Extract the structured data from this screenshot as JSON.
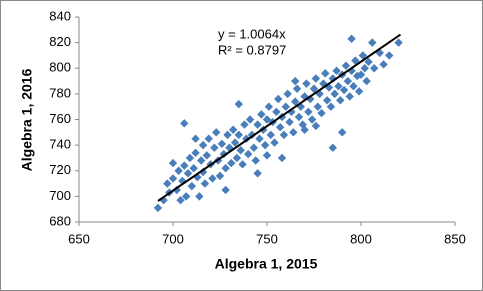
{
  "chart_data": {
    "type": "scatter",
    "x_label": "Algebra 1, 2015",
    "y_label": "Algebra 1, 2016",
    "annotations": [
      "y = 1.0064x",
      "R² = 0.8797"
    ],
    "color": "#4a7ebb",
    "grid": false,
    "legend": false,
    "xlim": [
      650,
      850
    ],
    "xticks": [
      650,
      700,
      750,
      800,
      850
    ],
    "ylim": [
      680,
      840
    ],
    "yticks": [
      680,
      700,
      720,
      740,
      760,
      780,
      800,
      820,
      840
    ],
    "trendline": {
      "color": "#000000",
      "x": [
        692,
        821
      ],
      "y": [
        696.4,
        826.3
      ]
    },
    "x": [
      692,
      695,
      697,
      698,
      700,
      700,
      702,
      703,
      704,
      705,
      706,
      706,
      707,
      708,
      709,
      710,
      711,
      712,
      713,
      714,
      715,
      716,
      716,
      717,
      718,
      719,
      720,
      721,
      722,
      723,
      724,
      725,
      726,
      727,
      728,
      729,
      730,
      731,
      732,
      733,
      734,
      735,
      735,
      736,
      737,
      738,
      739,
      740,
      741,
      742,
      743,
      744,
      745,
      746,
      747,
      748,
      749,
      750,
      750,
      751,
      752,
      753,
      754,
      755,
      756,
      757,
      758,
      759,
      760,
      761,
      762,
      763,
      764,
      765,
      766,
      767,
      768,
      769,
      770,
      771,
      772,
      773,
      774,
      775,
      776,
      777,
      778,
      779,
      780,
      781,
      782,
      783,
      784,
      785,
      785,
      786,
      787,
      788,
      789,
      790,
      790,
      791,
      792,
      793,
      794,
      795,
      795,
      796,
      797,
      798,
      799,
      800,
      801,
      802,
      803,
      804,
      806,
      807,
      810,
      812,
      815,
      820,
      758,
      745,
      770,
      728,
      712,
      765,
      776
    ],
    "y": [
      691,
      697,
      710,
      703,
      726,
      714,
      705,
      720,
      697,
      712,
      757,
      724,
      700,
      718,
      730,
      708,
      722,
      734,
      715,
      700,
      728,
      740,
      719,
      710,
      732,
      745,
      725,
      714,
      738,
      750,
      728,
      716,
      741,
      733,
      722,
      748,
      738,
      726,
      752,
      742,
      730,
      772,
      748,
      736,
      725,
      756,
      745,
      733,
      760,
      748,
      738,
      728,
      756,
      745,
      764,
      752,
      740,
      732,
      760,
      770,
      748,
      758,
      742,
      766,
      776,
      754,
      762,
      748,
      770,
      780,
      758,
      766,
      750,
      774,
      784,
      762,
      770,
      756,
      778,
      788,
      766,
      776,
      760,
      784,
      792,
      770,
      780,
      765,
      788,
      796,
      775,
      785,
      770,
      738,
      792,
      780,
      798,
      786,
      775,
      750,
      795,
      783,
      802,
      790,
      778,
      823,
      798,
      786,
      806,
      794,
      782,
      795,
      810,
      800,
      790,
      805,
      820,
      800,
      812,
      803,
      810,
      820,
      730,
      718,
      752,
      705,
      745,
      790,
      755
    ]
  }
}
